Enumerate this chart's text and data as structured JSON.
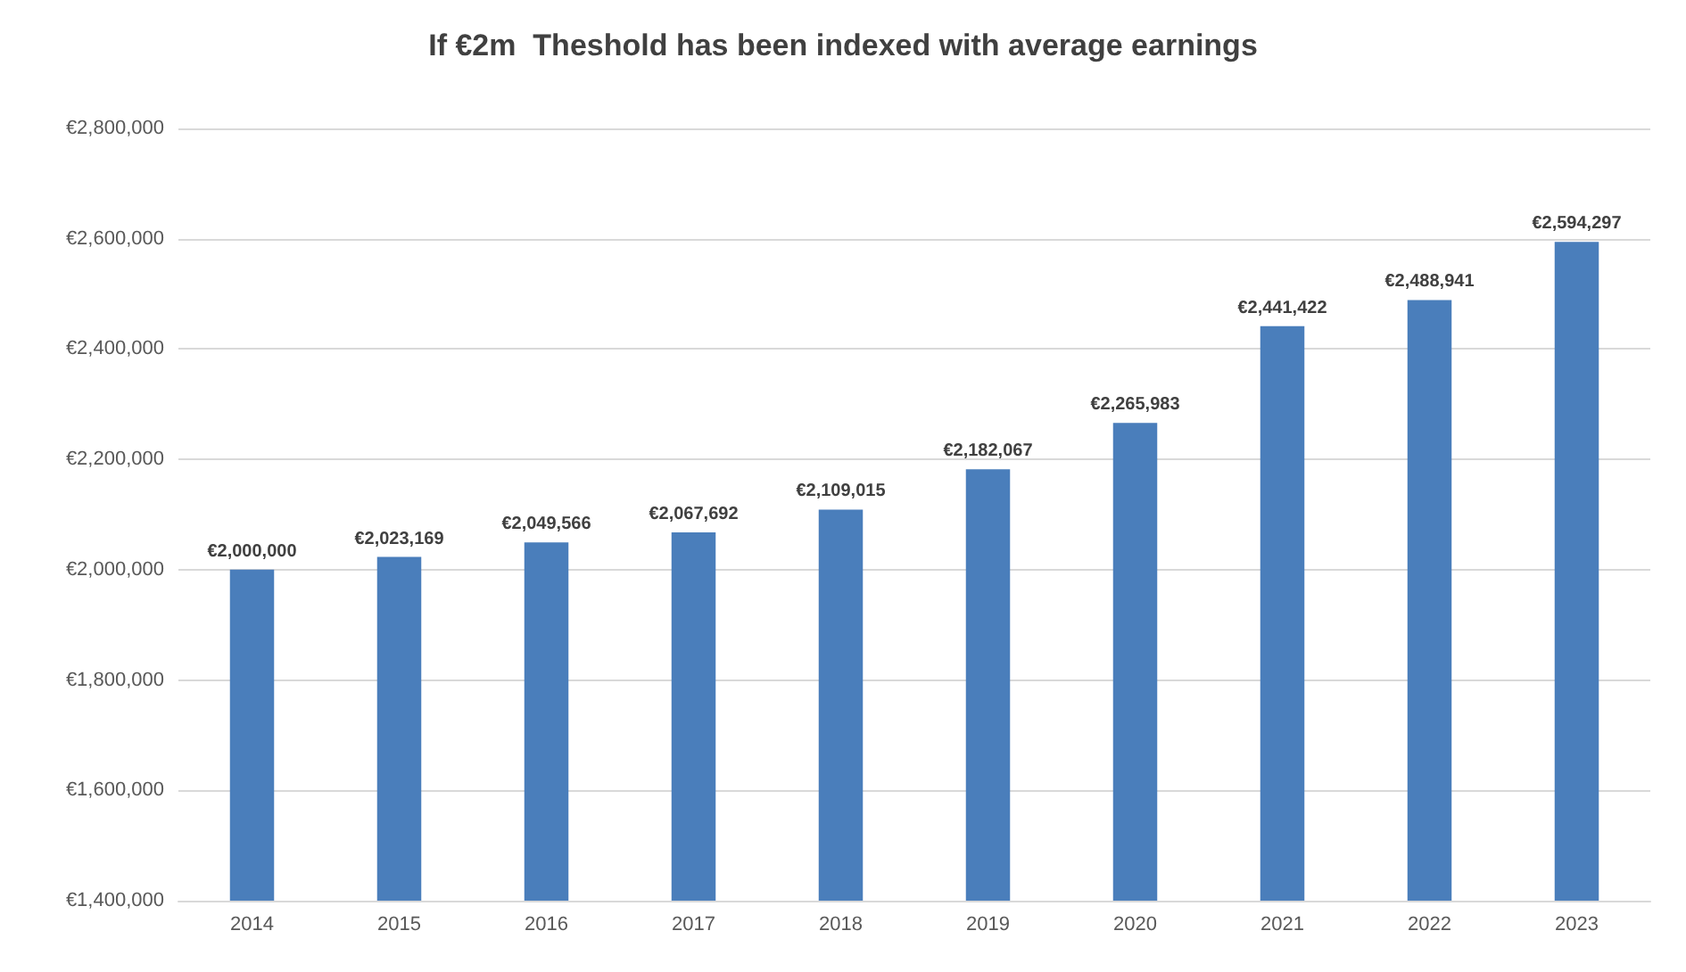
{
  "chart_data": {
    "type": "bar",
    "title": "If €2m  Theshold has been indexed with average earnings",
    "categories": [
      "2014",
      "2015",
      "2016",
      "2017",
      "2018",
      "2019",
      "2020",
      "2021",
      "2022",
      "2023"
    ],
    "values": [
      2000000,
      2023169,
      2049566,
      2067692,
      2109015,
      2182067,
      2265983,
      2441422,
      2488941,
      2594297
    ],
    "value_labels": [
      "€2,000,000",
      "€2,023,169",
      "€2,049,566",
      "€2,067,692",
      "€2,109,015",
      "€2,182,067",
      "€2,265,983",
      "€2,441,422",
      "€2,488,941",
      "€2,594,297"
    ],
    "color": "#4a7ebb",
    "ylim": [
      1400000,
      2800000
    ],
    "yticks": [
      {
        "value": 1400000,
        "label": "€1,400,000"
      },
      {
        "value": 1600000,
        "label": "€1,600,000"
      },
      {
        "value": 1800000,
        "label": "€1,800,000"
      },
      {
        "value": 2000000,
        "label": "€2,000,000"
      },
      {
        "value": 2200000,
        "label": "€2,200,000"
      },
      {
        "value": 2400000,
        "label": "€2,400,000"
      },
      {
        "value": 2600000,
        "label": "€2,600,000"
      },
      {
        "value": 2800000,
        "label": "€2,800,000"
      }
    ],
    "grid": "y"
  }
}
